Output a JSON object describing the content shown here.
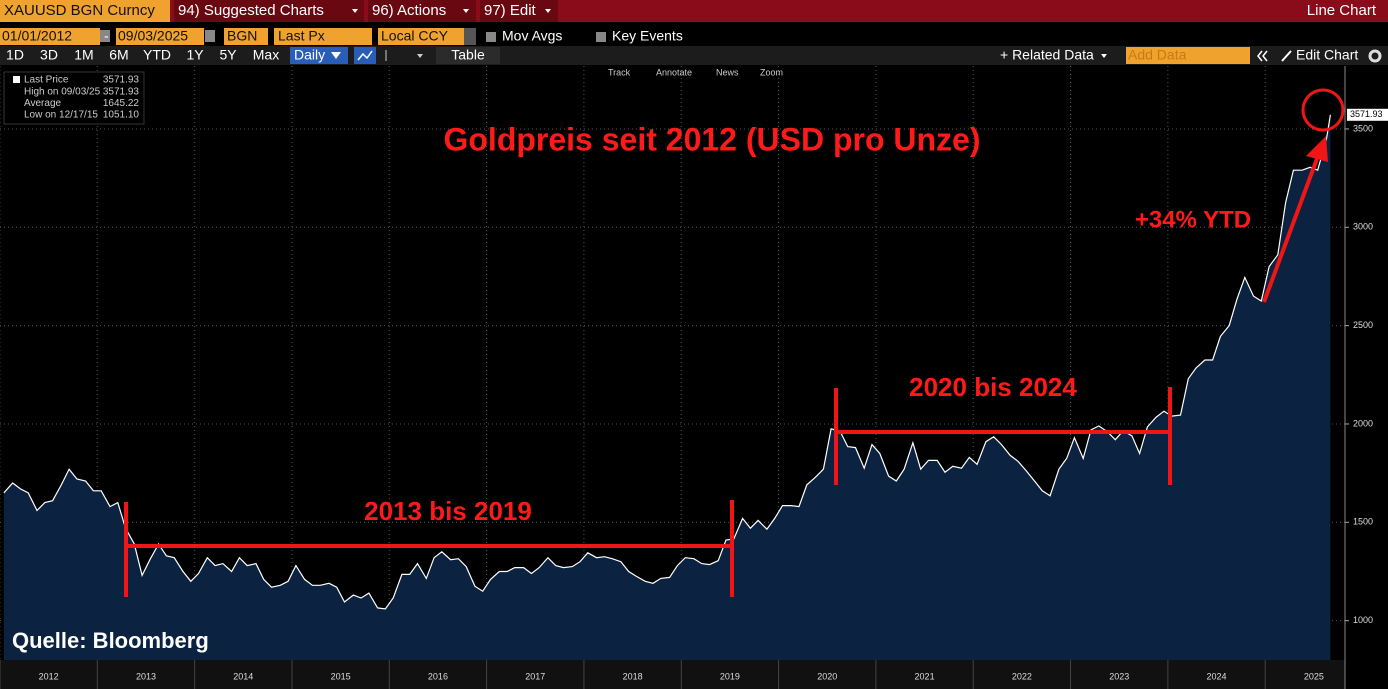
{
  "toolbar": {
    "ticker": "XAUUSD BGN Curncy",
    "menus": [
      "94) Suggested Charts",
      "96) Actions",
      "97) Edit"
    ],
    "chart_type": "Line Chart"
  },
  "controls": {
    "start": "01/01/2012",
    "dash": "-",
    "end": "09/03/2025",
    "source": "BGN",
    "field": "Last Px",
    "currency": "Local CCY",
    "mov_avgs": "Mov Avgs",
    "key_events": "Key Events",
    "periods": [
      "1D",
      "3D",
      "1M",
      "6M",
      "YTD",
      "1Y",
      "5Y",
      "Max"
    ],
    "frequency": "Daily",
    "table": "Table",
    "related": "+ Related Data",
    "add_data": "Add Data",
    "edit_chart": "Edit Chart",
    "tools": [
      "Track",
      "Annotate",
      "News",
      "Zoom"
    ]
  },
  "chart_data": {
    "type": "line",
    "title": "Goldpreis seit 2012 (USD pro Unze)",
    "annotations": [
      "+34% YTD",
      "2013 bis 2019",
      "2020 bis 2024"
    ],
    "source": "Quelle: Bloomberg",
    "last_label": "3571.93",
    "stats": [
      {
        "label": "High on 09/03/25",
        "value": "3571.93"
      },
      {
        "label": "Average",
        "value": "1645.22"
      },
      {
        "label": "Low on 12/17/15",
        "value": "1051.10"
      }
    ],
    "xlim": [
      2012,
      2025.82
    ],
    "xticks": [
      2012,
      2013,
      2014,
      2015,
      2016,
      2017,
      2018,
      2019,
      2020,
      2021,
      2022,
      2023,
      2024,
      2025
    ],
    "ylim": [
      800,
      3820
    ],
    "yticks": [
      1000,
      1500,
      2000,
      2500,
      3000,
      3500
    ],
    "grid": true,
    "x": [
      2012.04,
      2012.13,
      2012.21,
      2012.29,
      2012.38,
      2012.46,
      2012.54,
      2012.63,
      2012.71,
      2012.79,
      2012.88,
      2012.96,
      2013.04,
      2013.13,
      2013.21,
      2013.29,
      2013.38,
      2013.46,
      2013.54,
      2013.63,
      2013.71,
      2013.79,
      2013.88,
      2013.96,
      2014.04,
      2014.13,
      2014.21,
      2014.29,
      2014.38,
      2014.46,
      2014.54,
      2014.63,
      2014.71,
      2014.79,
      2014.88,
      2014.96,
      2015.04,
      2015.13,
      2015.21,
      2015.29,
      2015.38,
      2015.46,
      2015.54,
      2015.63,
      2015.71,
      2015.79,
      2015.88,
      2015.96,
      2016.04,
      2016.13,
      2016.21,
      2016.29,
      2016.38,
      2016.46,
      2016.54,
      2016.63,
      2016.71,
      2016.79,
      2016.88,
      2016.96,
      2017.04,
      2017.13,
      2017.21,
      2017.29,
      2017.38,
      2017.46,
      2017.54,
      2017.63,
      2017.71,
      2017.79,
      2017.88,
      2017.96,
      2018.04,
      2018.13,
      2018.21,
      2018.29,
      2018.38,
      2018.46,
      2018.54,
      2018.63,
      2018.71,
      2018.79,
      2018.88,
      2018.96,
      2019.04,
      2019.13,
      2019.21,
      2019.29,
      2019.38,
      2019.46,
      2019.54,
      2019.63,
      2019.71,
      2019.79,
      2019.88,
      2019.96,
      2020.04,
      2020.13,
      2020.21,
      2020.29,
      2020.38,
      2020.46,
      2020.54,
      2020.63,
      2020.71,
      2020.79,
      2020.88,
      2020.96,
      2021.04,
      2021.13,
      2021.21,
      2021.29,
      2021.38,
      2021.46,
      2021.54,
      2021.63,
      2021.71,
      2021.79,
      2021.88,
      2021.96,
      2022.04,
      2022.13,
      2022.21,
      2022.29,
      2022.38,
      2022.46,
      2022.54,
      2022.63,
      2022.71,
      2022.79,
      2022.88,
      2022.96,
      2023.04,
      2023.13,
      2023.21,
      2023.29,
      2023.38,
      2023.46,
      2023.54,
      2023.63,
      2023.71,
      2023.79,
      2023.88,
      2023.96,
      2024.04,
      2024.13,
      2024.21,
      2024.29,
      2024.38,
      2024.46,
      2024.54,
      2024.63,
      2024.71,
      2024.79,
      2024.88,
      2024.96,
      2025.04,
      2025.13,
      2025.21,
      2025.29,
      2025.38,
      2025.46,
      2025.54,
      2025.63,
      2025.67
    ],
    "series": [
      {
        "name": "Last Price",
        "color": "#ffffff",
        "fill": "#0b2240",
        "values": [
          1650,
          1700,
          1670,
          1650,
          1560,
          1600,
          1610,
          1690,
          1770,
          1720,
          1710,
          1660,
          1660,
          1580,
          1600,
          1470,
          1390,
          1230,
          1310,
          1390,
          1330,
          1320,
          1250,
          1200,
          1240,
          1320,
          1280,
          1290,
          1250,
          1320,
          1280,
          1290,
          1210,
          1170,
          1180,
          1200,
          1280,
          1210,
          1180,
          1180,
          1190,
          1170,
          1095,
          1130,
          1115,
          1140,
          1065,
          1060,
          1115,
          1235,
          1235,
          1290,
          1215,
          1320,
          1350,
          1310,
          1315,
          1275,
          1175,
          1150,
          1210,
          1250,
          1250,
          1270,
          1270,
          1240,
          1270,
          1320,
          1280,
          1270,
          1275,
          1300,
          1345,
          1320,
          1325,
          1315,
          1300,
          1250,
          1225,
          1200,
          1190,
          1215,
          1220,
          1280,
          1320,
          1315,
          1290,
          1285,
          1305,
          1410,
          1415,
          1520,
          1470,
          1510,
          1465,
          1520,
          1585,
          1585,
          1580,
          1690,
          1730,
          1770,
          1975,
          1965,
          1885,
          1880,
          1775,
          1895,
          1850,
          1735,
          1710,
          1770,
          1905,
          1770,
          1815,
          1815,
          1755,
          1785,
          1775,
          1830,
          1795,
          1910,
          1935,
          1895,
          1840,
          1810,
          1765,
          1710,
          1660,
          1635,
          1770,
          1825,
          1930,
          1825,
          1970,
          1990,
          1960,
          1920,
          1965,
          1940,
          1850,
          1985,
          2035,
          2065,
          2040,
          2045,
          2230,
          2285,
          2325,
          2325,
          2445,
          2500,
          2635,
          2745,
          2650,
          2625,
          2800,
          2860,
          3125,
          3290,
          3290,
          3305,
          3290,
          3450,
          3571.93
        ]
      }
    ]
  }
}
